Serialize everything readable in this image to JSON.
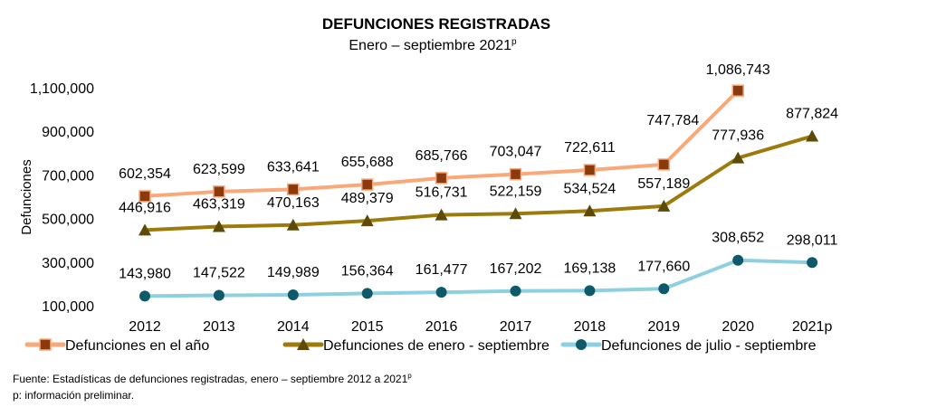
{
  "chart_data": {
    "type": "line",
    "title": "DEFUNCIONES REGISTRADAS",
    "subtitle": "Enero – septiembre 2021",
    "subtitle_sup": "p",
    "ylabel": "Defunciones",
    "xlabel": "",
    "ylim": [
      100000,
      1100000
    ],
    "yticks": [
      100000,
      300000,
      500000,
      700000,
      900000,
      1100000
    ],
    "ytick_labels": [
      "100,000",
      "300,000",
      "500,000",
      "700,000",
      "900,000",
      "1,100,000"
    ],
    "grid": false,
    "legend_position": "bottom",
    "categories": [
      "2012",
      "2013",
      "2014",
      "2015",
      "2016",
      "2017",
      "2018",
      "2019",
      "2020",
      "2021p"
    ],
    "series": [
      {
        "name": "Defunciones en el año",
        "color": "#F9A87A",
        "marker": "square",
        "marker_color": "#8B3A0E",
        "values": [
          602354,
          623599,
          633641,
          655688,
          685766,
          703047,
          722611,
          747784,
          1086743,
          null
        ],
        "labels": [
          "602,354",
          "623,599",
          "633,641",
          "655,688",
          "685,766",
          "703,047",
          "722,611",
          "747,784",
          "1,086,743",
          ""
        ]
      },
      {
        "name": "Defunciones de enero - septiembre",
        "color": "#9C7A0C",
        "marker": "triangle",
        "marker_color": "#5C4A06",
        "values": [
          446916,
          463319,
          470163,
          489379,
          516731,
          522159,
          534524,
          557189,
          777936,
          877824
        ],
        "labels": [
          "446,916",
          "463,319",
          "470,163",
          "489,379",
          "516,731",
          "522,159",
          "534,524",
          "557,189",
          "777,936",
          "877,824"
        ]
      },
      {
        "name": "Defunciones de julio - septiembre",
        "color": "#8ED0E0",
        "marker": "circle",
        "marker_color": "#0E5A6A",
        "values": [
          143980,
          147522,
          149989,
          156364,
          161477,
          167202,
          169138,
          177660,
          308652,
          298011
        ],
        "labels": [
          "143,980",
          "147,522",
          "149,989",
          "156,364",
          "161,477",
          "167,202",
          "169,138",
          "177,660",
          "308,652",
          "298,011"
        ]
      }
    ]
  },
  "footer": {
    "source": "Fuente: Estadísticas de defunciones registradas, enero – septiembre 2012 a 2021",
    "source_sup": "p",
    "note": "p: información preliminar."
  }
}
